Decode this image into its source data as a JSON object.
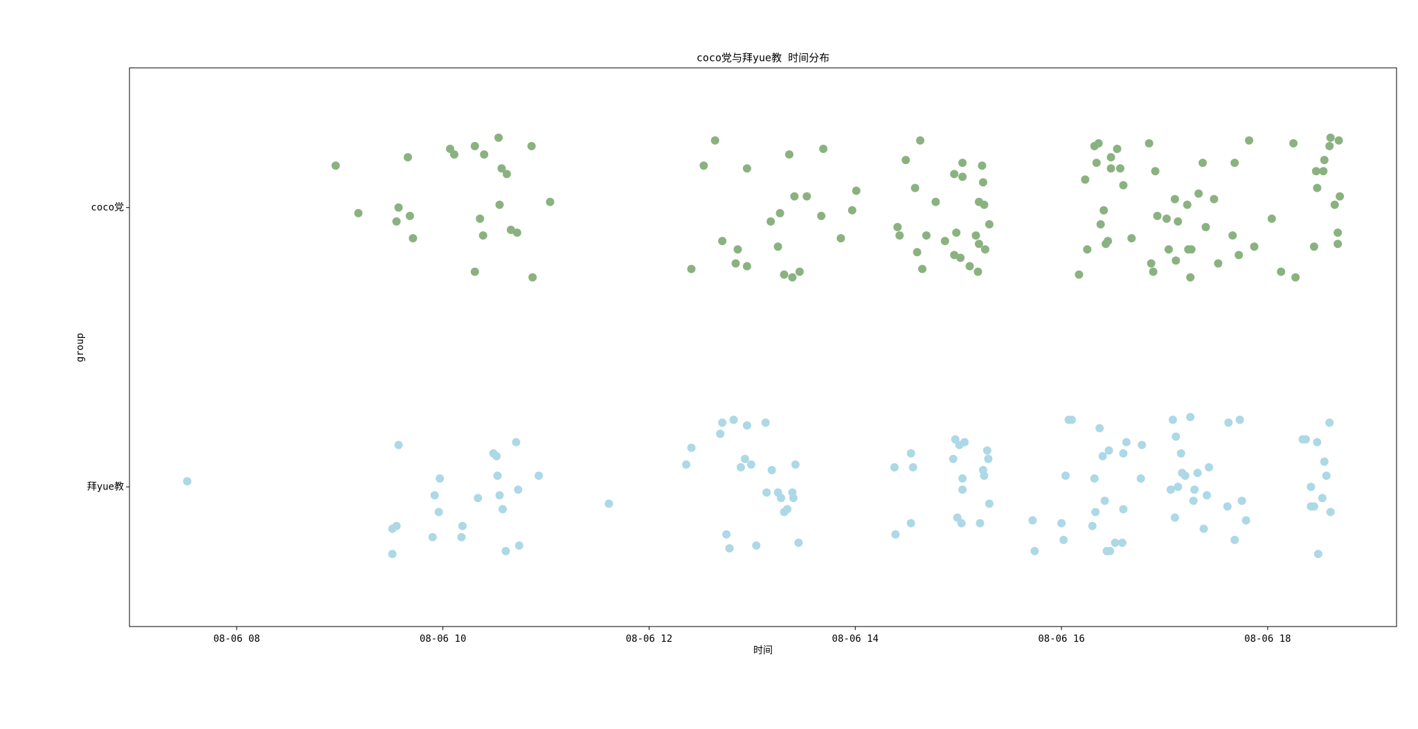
{
  "chart_data": {
    "type": "scatter",
    "title": "coco党与拜yue教 时间分布",
    "x_label": "时间",
    "y_label": "group",
    "xlim": [
      6.96,
      19.25
    ],
    "xticks": [
      {
        "value": 8,
        "label": "08-06 08"
      },
      {
        "value": 10,
        "label": "08-06 10"
      },
      {
        "value": 12,
        "label": "08-06 12"
      },
      {
        "value": 14,
        "label": "08-06 14"
      },
      {
        "value": 16,
        "label": "08-06 16"
      },
      {
        "value": 18,
        "label": "08-06 18"
      }
    ],
    "ylim": [
      1.5,
      -0.5
    ],
    "yticks": [
      {
        "value": 0,
        "label": "coco党"
      },
      {
        "value": 1,
        "label": "拜yue教"
      }
    ],
    "series": [
      {
        "color": "#8ab280",
        "x": [
          8.96,
          9.18,
          9.66,
          9.57,
          9.55,
          9.68,
          9.71,
          10.07,
          10.11,
          10.31,
          10.4,
          10.54,
          10.57,
          10.62,
          10.36,
          10.39,
          10.55,
          10.66,
          10.72,
          10.31,
          10.87,
          10.86,
          11.04,
          12.41,
          12.53,
          12.64,
          12.71,
          12.86,
          12.84,
          12.95,
          12.95,
          13.18,
          13.25,
          13.27,
          13.31,
          13.36,
          13.39,
          13.41,
          13.46,
          13.53,
          13.67,
          13.69,
          13.86,
          13.97,
          14.01,
          14.41,
          14.43,
          14.49,
          14.58,
          14.6,
          14.63,
          14.65,
          14.69,
          14.78,
          14.87,
          14.96,
          14.98,
          14.96,
          15.02,
          15.04,
          15.04,
          15.11,
          15.17,
          15.19,
          15.2,
          15.2,
          15.23,
          15.24,
          15.25,
          15.26,
          15.3,
          16.17,
          16.23,
          16.25,
          16.32,
          16.36,
          16.34,
          16.38,
          16.41,
          16.43,
          16.45,
          16.48,
          16.48,
          16.54,
          16.57,
          16.6,
          16.68,
          16.85,
          16.87,
          16.89,
          16.91,
          16.93,
          17.02,
          17.04,
          17.1,
          17.11,
          17.13,
          17.22,
          17.23,
          17.25,
          17.26,
          17.33,
          17.37,
          17.4,
          17.48,
          17.52,
          17.66,
          17.68,
          17.72,
          17.82,
          17.87,
          18.04,
          18.13,
          18.25,
          18.27,
          18.45,
          18.48,
          18.47,
          18.54,
          18.55,
          18.6,
          18.61,
          18.65,
          18.69,
          18.7,
          18.68,
          18.68
        ],
        "values": [
          -0.15,
          0.02,
          -0.18,
          0,
          0.05,
          0.03,
          0.11,
          -0.21,
          -0.19,
          -0.22,
          -0.19,
          -0.25,
          -0.14,
          -0.12,
          0.04,
          0.1,
          -0.01,
          0.08,
          0.09,
          0.23,
          0.25,
          -0.22,
          -0.02,
          0.22,
          -0.15,
          -0.24,
          0.12,
          0.15,
          0.2,
          -0.14,
          0.21,
          0.05,
          0.14,
          0.02,
          0.24,
          -0.19,
          0.25,
          -0.04,
          0.23,
          -0.04,
          0.03,
          -0.21,
          0.11,
          0.01,
          -0.06,
          0.07,
          0.1,
          -0.17,
          -0.07,
          0.16,
          -0.24,
          0.22,
          0.1,
          -0.02,
          0.12,
          -0.12,
          0.09,
          0.17,
          0.18,
          -0.16,
          -0.11,
          0.21,
          0.1,
          0.23,
          -0.02,
          0.13,
          -0.15,
          -0.09,
          -0.01,
          0.15,
          0.06,
          0.24,
          -0.1,
          0.15,
          -0.22,
          -0.23,
          -0.16,
          0.06,
          0.01,
          0.13,
          0.12,
          -0.18,
          -0.14,
          -0.21,
          -0.14,
          -0.08,
          0.11,
          -0.23,
          0.2,
          0.23,
          -0.13,
          0.03,
          0.04,
          0.15,
          -0.03,
          0.19,
          0.05,
          -0.01,
          0.15,
          0.25,
          0.15,
          -0.05,
          -0.16,
          0.07,
          -0.03,
          0.2,
          0.1,
          -0.16,
          0.17,
          -0.24,
          0.14,
          0.04,
          0.23,
          -0.23,
          0.25,
          0.14,
          -0.07,
          -0.13,
          -0.13,
          -0.17,
          -0.22,
          -0.25,
          -0.01,
          -0.24,
          -0.04,
          0.09,
          0.13
        ]
      },
      {
        "color": "#add8e6",
        "x": [
          7.52,
          9.57,
          9.51,
          9.51,
          9.55,
          9.9,
          9.92,
          9.96,
          9.97,
          10.18,
          10.19,
          10.34,
          10.49,
          10.52,
          10.53,
          10.55,
          10.58,
          10.61,
          10.71,
          10.73,
          10.74,
          10.93,
          11.61,
          12.36,
          12.41,
          12.69,
          12.71,
          12.75,
          12.78,
          12.82,
          12.89,
          12.93,
          12.95,
          12.99,
          13.04,
          13.13,
          13.14,
          13.19,
          13.25,
          13.28,
          13.31,
          13.34,
          13.39,
          13.4,
          13.42,
          13.45,
          14.38,
          14.39,
          14.54,
          14.56,
          14.54,
          14.95,
          14.97,
          15.01,
          14.99,
          15.03,
          15.04,
          15.04,
          15.06,
          15.21,
          15.24,
          15.25,
          15.28,
          15.29,
          15.3,
          15.72,
          15.74,
          16.0,
          16.02,
          16.04,
          16.07,
          16.1,
          16.3,
          16.32,
          16.33,
          16.37,
          16.4,
          16.42,
          16.44,
          16.47,
          16.46,
          16.52,
          16.59,
          16.6,
          16.6,
          16.63,
          16.77,
          16.78,
          17.06,
          17.08,
          17.1,
          17.11,
          17.13,
          17.16,
          17.17,
          17.2,
          17.25,
          17.28,
          17.29,
          17.32,
          17.38,
          17.41,
          17.43,
          17.61,
          17.62,
          17.68,
          17.73,
          17.75,
          17.79,
          18.34,
          18.37,
          18.42,
          18.42,
          18.45,
          18.48,
          18.49,
          18.53,
          18.55,
          18.57,
          18.6,
          18.61
        ],
        "values": [
          0.98,
          0.85,
          1.24,
          1.15,
          1.14,
          1.18,
          1.03,
          1.09,
          0.97,
          1.18,
          1.14,
          1.04,
          0.88,
          0.89,
          0.96,
          1.03,
          1.08,
          1.23,
          0.84,
          1.01,
          1.21,
          0.96,
          1.06,
          0.92,
          0.86,
          0.81,
          0.77,
          1.17,
          1.22,
          0.76,
          0.93,
          0.9,
          0.78,
          0.92,
          1.21,
          0.77,
          1.02,
          0.94,
          1.02,
          1.04,
          1.09,
          1.08,
          1.02,
          1.04,
          0.92,
          1.2,
          0.93,
          1.17,
          0.88,
          0.93,
          1.13,
          0.9,
          0.83,
          0.85,
          1.11,
          1.13,
          0.97,
          1.01,
          0.84,
          1.13,
          0.94,
          0.96,
          0.87,
          0.9,
          1.06,
          1.12,
          1.23,
          1.13,
          1.19,
          0.96,
          0.76,
          0.76,
          1.14,
          0.97,
          1.09,
          0.79,
          0.89,
          1.05,
          1.23,
          1.23,
          0.87,
          1.2,
          1.2,
          0.88,
          1.08,
          0.84,
          0.97,
          0.85,
          1.01,
          0.76,
          1.11,
          0.82,
          1.0,
          0.88,
          0.95,
          0.96,
          0.75,
          1.05,
          1.01,
          0.95,
          1.15,
          1.03,
          0.93,
          1.07,
          0.77,
          1.19,
          0.76,
          1.05,
          1.12,
          0.83,
          0.83,
          1.0,
          1.07,
          1.07,
          0.84,
          1.24,
          1.04,
          0.91,
          0.96,
          0.77,
          1.09
        ]
      }
    ]
  }
}
